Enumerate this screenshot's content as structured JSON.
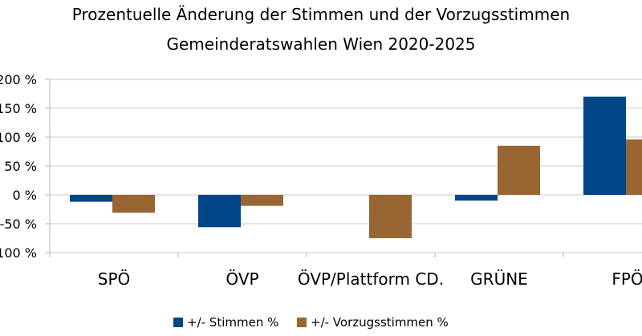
{
  "chart_data": {
    "type": "bar",
    "title": "Prozentuelle Änderung der Stimmen und der Vorzugsstimmen",
    "subtitle": "Gemeinderatswahlen Wien 2020-2025",
    "categories": [
      "SPÖ",
      "ÖVP",
      "ÖVP/Plattform CD.",
      "GRÜNE",
      "FPÖ"
    ],
    "series": [
      {
        "name": "+/- Stimmen %",
        "color": "#004586",
        "values": [
          -12,
          -56,
          null,
          -10,
          170
        ]
      },
      {
        "name": "+/- Vorzugsstimmen %",
        "color": "#996633",
        "values": [
          -31,
          -19,
          -75,
          85,
          96
        ]
      }
    ],
    "yticks": [
      -100,
      -50,
      0,
      50,
      100,
      150,
      200
    ],
    "ytick_labels": [
      "-100 %",
      "-50 %",
      "0 %",
      "50 %",
      "100 %",
      "150 %",
      "200 %"
    ],
    "ylim": [
      -100,
      200
    ],
    "xlabel": "",
    "ylabel": "",
    "grid": true,
    "legend_position": "bottom"
  }
}
